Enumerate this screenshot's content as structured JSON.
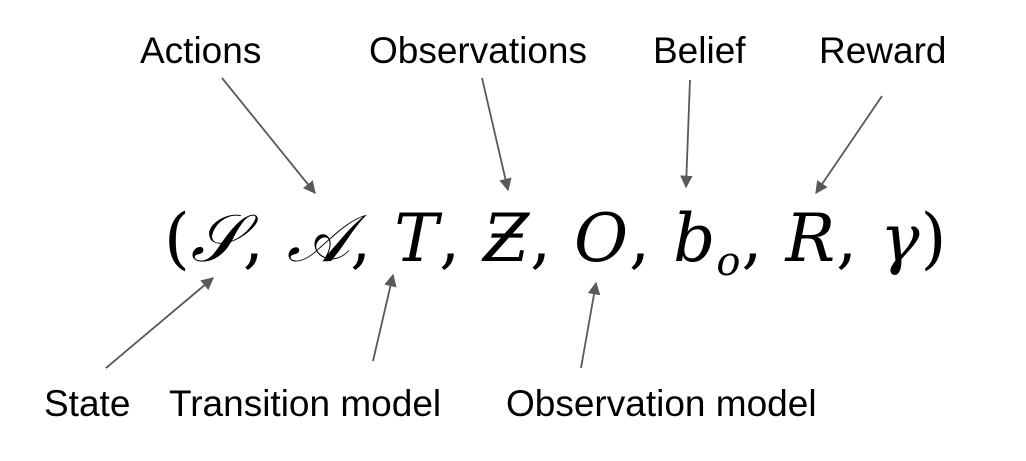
{
  "labels": {
    "actions": "Actions",
    "observations": "Observations",
    "belief": "Belief",
    "reward": "Reward",
    "state": "State",
    "transition": "Transition model",
    "observation_model": "Observation model"
  },
  "tuple": {
    "open": "(",
    "S": "𝒮",
    "A": "𝒜",
    "T": "T",
    "Z": "Ƶ",
    "O": "O",
    "b": "b",
    "o": "o",
    "R": "R",
    "gamma": "γ",
    "comma": ",",
    "close": ")"
  },
  "colors": {
    "text": "#000000",
    "arrow": "#595959"
  }
}
